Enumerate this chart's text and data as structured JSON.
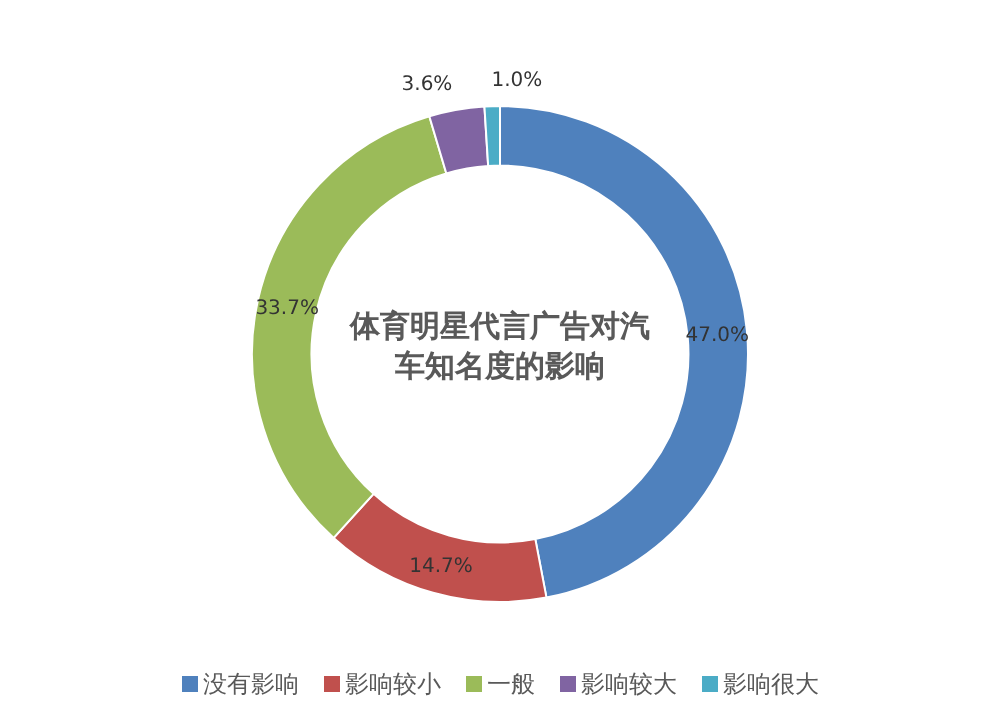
{
  "chart_data": {
    "type": "donut",
    "title": "体育明星代言广告对汽车知名度的影响",
    "categories": [
      "没有影响",
      "影响较小",
      "一般",
      "影响较大",
      "影响很大"
    ],
    "values": [
      47.0,
      14.7,
      33.7,
      3.6,
      1.0
    ],
    "value_labels": [
      "47.0%",
      "14.7%",
      "33.7%",
      "3.6%",
      "1.0%"
    ],
    "colors": [
      "#4f81bd",
      "#c0504d",
      "#9bbb59",
      "#8064a2",
      "#4bacc6"
    ],
    "legend": "bottom"
  }
}
